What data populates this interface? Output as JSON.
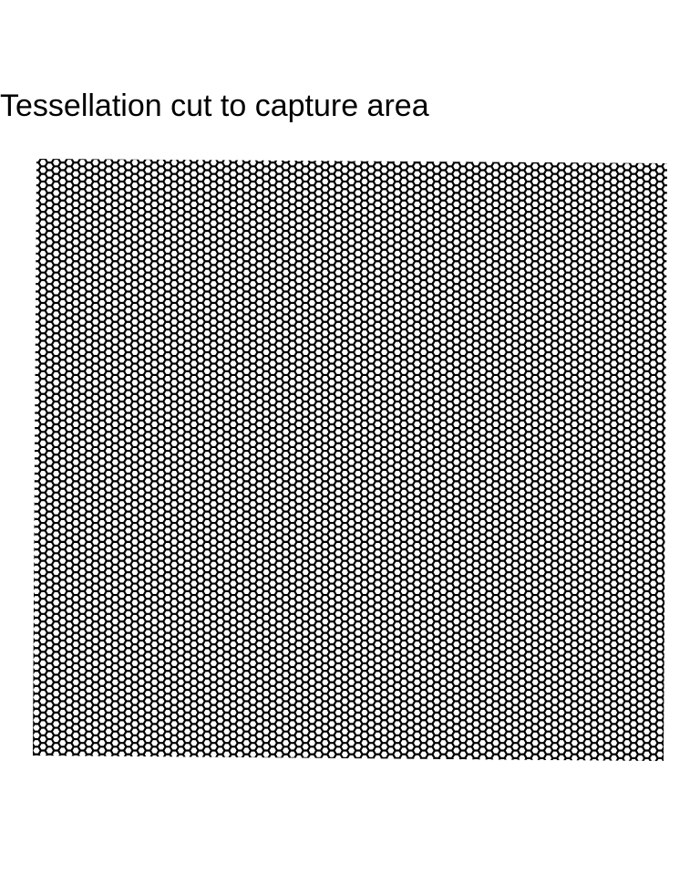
{
  "title": "Tessellation cut to capture area",
  "diagram": {
    "type": "hexagonal tessellation",
    "line_color": "#000000",
    "fill_color": "#ffffff",
    "background": "#ffffff"
  }
}
